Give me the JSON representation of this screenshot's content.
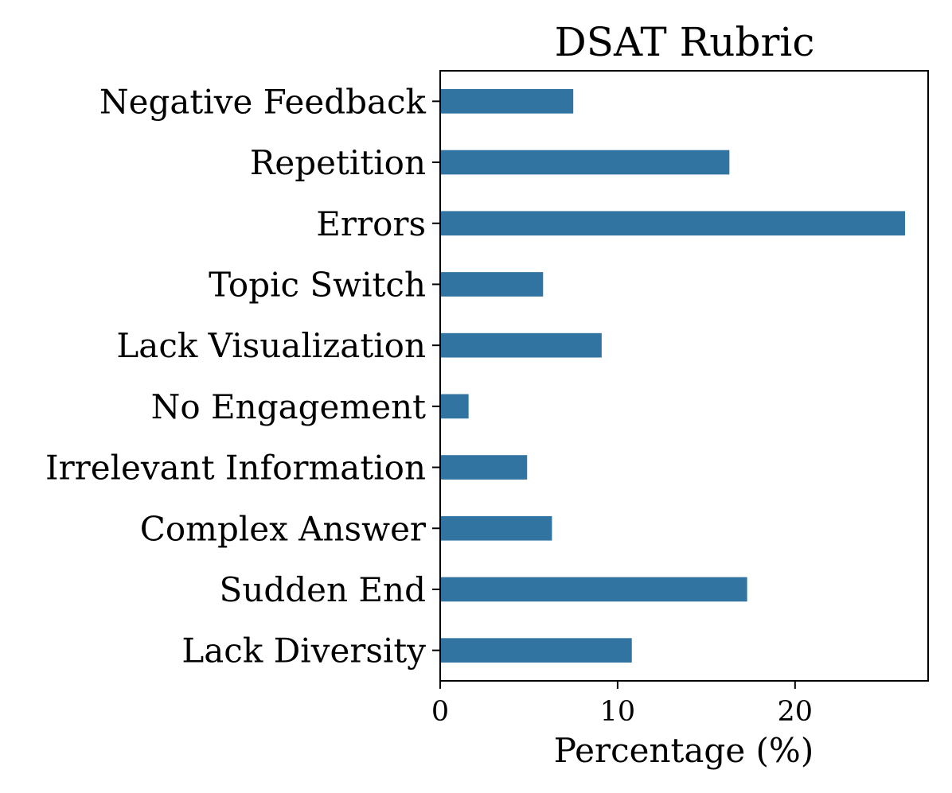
{
  "chart_data": {
    "type": "bar",
    "orientation": "horizontal",
    "title": "DSAT Rubric",
    "xlabel": "Percentage (%)",
    "ylabel": "",
    "categories": [
      "Negative Feedback",
      "Repetition",
      "Errors",
      "Topic Switch",
      "Lack Visualization",
      "No Engagement",
      "Irrelevant Information",
      "Complex Answer",
      "Sudden End",
      "Lack Diversity"
    ],
    "values": [
      7.5,
      16.3,
      26.2,
      5.8,
      9.1,
      1.6,
      4.9,
      6.3,
      17.3,
      10.8
    ],
    "xlim": [
      0,
      27.5
    ],
    "xticks": [
      "0",
      "10",
      "20"
    ],
    "xtick_values": [
      0,
      10,
      20
    ],
    "bar_color": "#3274a1",
    "grid": false
  }
}
